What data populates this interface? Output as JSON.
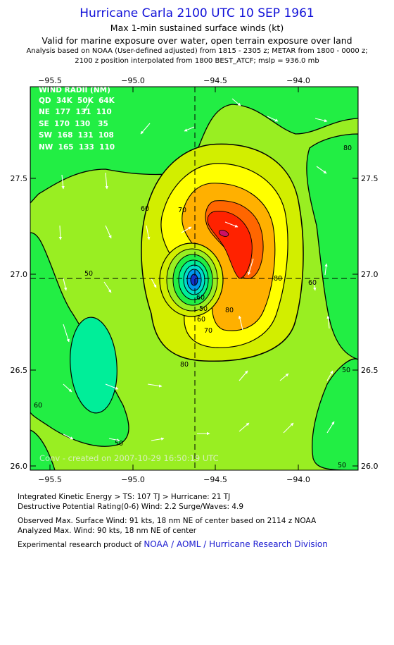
{
  "header": {
    "title": "Hurricane Carla 2100 UTC 10 SEP 1961",
    "subtitle1": "Max 1-min sustained surface winds (kt)",
    "subtitle2": "Valid for marine exposure over water, open terrain exposure over land",
    "analysis": "Analysis based on  NOAA (User-defined adjusted) from 1815 - 2305 z;  METAR from 1800 - 0000 z;",
    "position": "2100 z position interpolated from 1800 BEST_ATCF; mslp = 936.0 mb"
  },
  "map": {
    "lon_ticks": [
      "−95.5",
      "−95.0",
      "−94.5",
      "−94.0"
    ],
    "lat_ticks": [
      "27.5",
      "27.0",
      "26.5",
      "26.0"
    ],
    "center": {
      "lon": -94.61,
      "lat": 26.97
    },
    "contour_labels": [
      "60",
      "70",
      "80",
      "50",
      "60",
      "70",
      "80",
      "60",
      "80",
      "60",
      "50",
      "50",
      "80",
      "60",
      "50",
      "50"
    ],
    "credit": "Conv - created on 2007-10-29 16:50:19 UTC",
    "wind_radii": {
      "title": "WIND RADII (NM)",
      "header": "QD  34K  50K  64K",
      "rows": [
        "NE  177  131  110",
        "SE  170  130   35",
        "SW  168  131  108",
        "NW  165  133  110"
      ]
    },
    "colors": {
      "c30": "#00e000",
      "c40": "#22ee44",
      "c50": "#99ee22",
      "c60": "#d2ee00",
      "c70": "#ffff00",
      "c80": "#ffb000",
      "c90": "#ff6600",
      "c100": "#ff2200"
    }
  },
  "footer": {
    "ike": "Integrated Kinetic Energy > TS: 107 TJ    > Hurricane: 21 TJ",
    "dpr": "Destructive Potential Rating(0-6)   Wind: 2.2 Surge/Waves: 4.9",
    "observed": "Observed Max. Surface Wind: 91 kts, 18 nm NE of center based on 2114 z NOAA",
    "analyzed": "Analyzed Max. Wind: 90 kts, 18 nm NE of center",
    "experimental": "Experimental research product of ",
    "org": "NOAA / AOML / Hurricane Research Division"
  }
}
